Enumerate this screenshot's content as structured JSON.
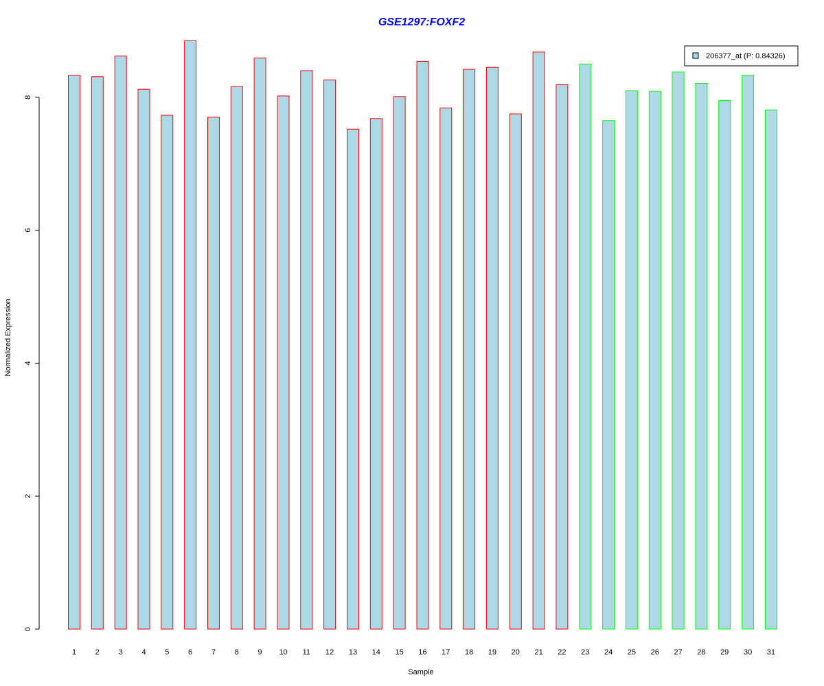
{
  "chart_data": {
    "type": "bar",
    "title": "GSE1297:FOXF2",
    "xlabel": "Sample",
    "ylabel": "Normalized Expression",
    "ylim": [
      0,
      8.85
    ],
    "yticks": [
      "0",
      "2",
      "4",
      "6",
      "8"
    ],
    "categories": [
      "1",
      "2",
      "3",
      "4",
      "5",
      "6",
      "7",
      "8",
      "9",
      "10",
      "11",
      "12",
      "13",
      "14",
      "15",
      "16",
      "17",
      "18",
      "19",
      "20",
      "21",
      "22",
      "23",
      "24",
      "25",
      "26",
      "27",
      "28",
      "29",
      "30",
      "31"
    ],
    "series": [
      {
        "name": "206377_at (P: 0.84326)",
        "values": [
          8.33,
          8.31,
          8.62,
          8.12,
          7.73,
          8.85,
          7.7,
          8.16,
          8.59,
          8.02,
          8.4,
          8.26,
          7.52,
          7.68,
          8.01,
          8.54,
          7.84,
          8.42,
          8.45,
          7.75,
          8.68,
          8.19,
          8.5,
          7.65,
          8.1,
          8.09,
          8.38,
          8.21,
          7.95,
          8.33,
          7.81
        ]
      }
    ],
    "bar_fill": "#add8e6",
    "border_colors": [
      "#ff0000",
      "#ff0000",
      "#ff0000",
      "#ff0000",
      "#ff0000",
      "#ff0000",
      "#ff0000",
      "#ff0000",
      "#ff0000",
      "#ff0000",
      "#ff0000",
      "#ff0000",
      "#ff0000",
      "#ff0000",
      "#ff0000",
      "#ff0000",
      "#ff0000",
      "#ff0000",
      "#ff0000",
      "#ff0000",
      "#ff0000",
      "#ff0000",
      "#00ff00",
      "#00ff00",
      "#00ff00",
      "#00ff00",
      "#00ff00",
      "#00ff00",
      "#00ff00",
      "#00ff00",
      "#00ff00"
    ],
    "title_color": "#0000ff",
    "legend_position": "top-right",
    "grid": false
  }
}
